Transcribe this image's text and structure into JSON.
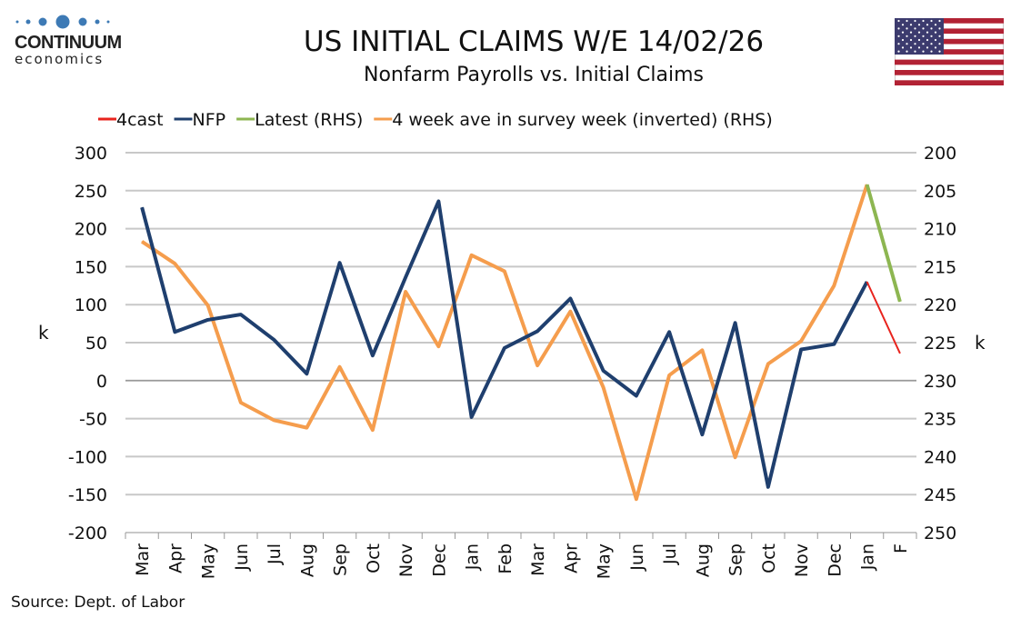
{
  "logo": {
    "name": "CONTINUUM",
    "sub": "economics"
  },
  "header": {
    "title": "US INITIAL CLAIMS W/E 14/02/26",
    "subtitle": "Nonfarm Payrolls vs. Initial Claims"
  },
  "source": "Source: Dept. of Labor",
  "chart_data": {
    "type": "line",
    "title": "US INITIAL CLAIMS W/E 14/02/26",
    "subtitle": "Nonfarm Payrolls vs. Initial Claims",
    "categories": [
      "Mar",
      "Apr",
      "May",
      "Jun",
      "Jul",
      "Aug",
      "Sep",
      "Oct",
      "Nov",
      "Dec",
      "Jan",
      "Feb",
      "Mar",
      "Apr",
      "May",
      "Jun",
      "Jul",
      "Aug",
      "Sep",
      "Oct",
      "Nov",
      "Dec",
      "Jan",
      "F"
    ],
    "ylabel": "k",
    "y2label": "k",
    "ylim": [
      -200,
      300
    ],
    "yticks": [
      300,
      250,
      200,
      150,
      100,
      50,
      0,
      -50,
      -100,
      -150,
      -200
    ],
    "y2lim": [
      200,
      250
    ],
    "y2inverted": true,
    "y2ticks": [
      200,
      205,
      210,
      215,
      220,
      225,
      230,
      235,
      240,
      245,
      250
    ],
    "grid": true,
    "legend_position": "top",
    "series": [
      {
        "name": "4cast",
        "axis": "left",
        "color": "#e8231d",
        "values": [
          null,
          null,
          null,
          null,
          null,
          null,
          null,
          null,
          null,
          null,
          null,
          null,
          null,
          null,
          null,
          null,
          null,
          null,
          null,
          null,
          null,
          null,
          130,
          36
        ]
      },
      {
        "name": "NFP",
        "axis": "left",
        "color": "#1f3f6e",
        "values": [
          228,
          64,
          80,
          87,
          54,
          9,
          155,
          33,
          136,
          236,
          -48,
          43,
          65,
          108,
          13,
          -20,
          64,
          -71,
          76,
          -140,
          41,
          48,
          130,
          null
        ]
      },
      {
        "name": "Latest (RHS)",
        "axis": "right",
        "color": "#8db651",
        "values": [
          null,
          null,
          null,
          null,
          null,
          null,
          null,
          null,
          null,
          null,
          null,
          null,
          null,
          null,
          null,
          null,
          null,
          null,
          null,
          null,
          null,
          null,
          204.2,
          219.6
        ]
      },
      {
        "name": "4 week ave in survey week (inverted) (RHS)",
        "axis": "right",
        "color": "#f59d4d",
        "values": [
          211.7,
          214.6,
          220.1,
          232.9,
          235.2,
          236.2,
          228.2,
          236.5,
          218.3,
          225.5,
          213.5,
          215.6,
          228,
          220.9,
          230.9,
          245.6,
          229.3,
          226,
          240.1,
          227.8,
          224.8,
          217.5,
          204.2,
          null
        ]
      }
    ]
  }
}
